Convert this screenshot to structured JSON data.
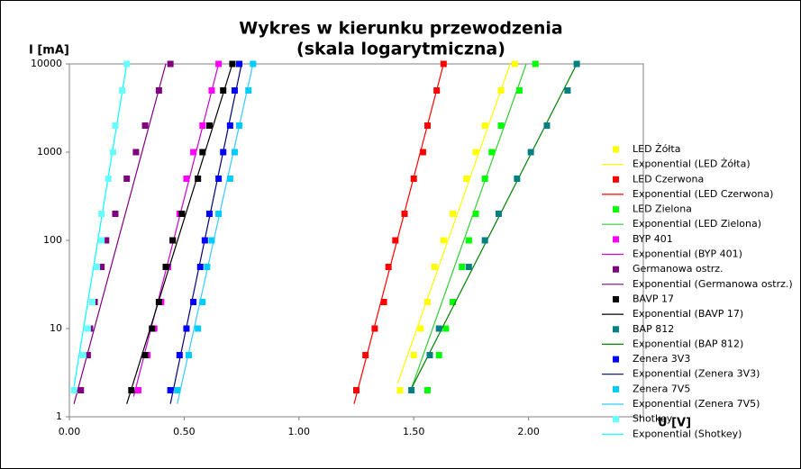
{
  "chart_data": {
    "type": "scatter",
    "title": [
      "Wykres w kierunku przewodzenia",
      "(skala logarytmiczna)"
    ],
    "y_label": "I [mA]",
    "x_label": "U [V]",
    "y_log": true,
    "grid": false,
    "legend": "right",
    "xlim": [
      0,
      2.5
    ],
    "ylim": [
      1,
      10000
    ],
    "xticks": [
      {
        "value": 0,
        "label": "0.00"
      },
      {
        "value": 0.5,
        "label": "0.50"
      },
      {
        "value": 1,
        "label": "1.00"
      },
      {
        "value": 1.5,
        "label": "1.50"
      },
      {
        "value": 2,
        "label": "2.00"
      }
    ],
    "yticks": [
      1,
      10,
      100,
      1000,
      10000
    ],
    "series": [
      {
        "name": "LED Żółta",
        "color": "#ffff00",
        "x": [
          1.44,
          1.5,
          1.53,
          1.56,
          1.59,
          1.63,
          1.67,
          1.73,
          1.77,
          1.81,
          1.88,
          1.94
        ],
        "values": [
          2,
          5,
          10,
          20,
          50,
          100,
          200,
          500,
          1000,
          2000,
          5000,
          10000
        ],
        "trend": {
          "name": "Exponential (LED Żółta)",
          "color": "#ffff00",
          "x": [
            1.43,
            1.92
          ],
          "values": [
            2.4,
            10000
          ]
        }
      },
      {
        "name": "LED Czerwona",
        "color": "#ff0000",
        "x": [
          1.25,
          1.29,
          1.33,
          1.37,
          1.39,
          1.42,
          1.46,
          1.5,
          1.54,
          1.56,
          1.6,
          1.63
        ],
        "values": [
          2,
          5,
          10,
          20,
          50,
          100,
          200,
          500,
          1000,
          2000,
          5000,
          10000
        ],
        "trend": {
          "name": "Exponential (LED Czerwona)",
          "color": "#ff0000",
          "x": [
            1.24,
            1.63
          ],
          "values": [
            1.4,
            10000
          ]
        }
      },
      {
        "name": "LED Zielona",
        "color": "#00ff00",
        "x": [
          1.56,
          1.61,
          1.64,
          1.67,
          1.71,
          1.74,
          1.77,
          1.81,
          1.84,
          1.88,
          1.96,
          2.03
        ],
        "values": [
          2,
          5,
          10,
          20,
          50,
          100,
          200,
          500,
          1000,
          2000,
          5000,
          10000
        ],
        "trend": {
          "name": "Exponential (LED Zielona)",
          "color": "#33cc33",
          "x": [
            1.49,
            1.99
          ],
          "values": [
            2.1,
            10000
          ]
        }
      },
      {
        "name": "BYP 401",
        "color": "#ff00ff",
        "x": [
          0.3,
          0.34,
          0.37,
          0.4,
          0.43,
          0.45,
          0.48,
          0.51,
          0.54,
          0.58,
          0.62,
          0.65
        ],
        "values": [
          2,
          5,
          10,
          20,
          50,
          100,
          200,
          500,
          1000,
          2000,
          5000,
          10000
        ],
        "trend": {
          "name": "Exponential (BYP 401)",
          "color": "#cc00cc",
          "x": [
            0.28,
            0.65
          ],
          "values": [
            1.7,
            10000
          ]
        }
      },
      {
        "name": "Germanowa ostrz.",
        "color": "#800080",
        "x": [
          0.05,
          0.08,
          0.09,
          0.11,
          0.14,
          0.16,
          0.2,
          0.25,
          0.29,
          0.33,
          0.39,
          0.44
        ],
        "values": [
          2,
          5,
          10,
          20,
          50,
          100,
          200,
          500,
          1000,
          2000,
          5000,
          10000
        ],
        "trend": {
          "name": "Exponential (Germanowa ostrz.)",
          "color": "#800080",
          "x": [
            0.02,
            0.42
          ],
          "values": [
            1.4,
            10000
          ]
        }
      },
      {
        "name": "BAVP 17",
        "color": "#000000",
        "x": [
          0.27,
          0.33,
          0.36,
          0.39,
          0.42,
          0.45,
          0.49,
          0.56,
          0.58,
          0.61,
          0.67,
          0.71
        ],
        "values": [
          2,
          5,
          10,
          20,
          50,
          100,
          200,
          500,
          1000,
          2000,
          5000,
          10000
        ],
        "trend": {
          "name": "Exponential (BAVP 17)",
          "color": "#000000",
          "x": [
            0.25,
            0.71
          ],
          "values": [
            1.4,
            10000
          ]
        }
      },
      {
        "name": "BAP 812",
        "color": "#008080",
        "x": [
          1.49,
          1.57,
          1.61,
          1.74,
          1.81,
          1.87,
          1.95,
          2.01,
          2.08,
          2.17,
          2.21
        ],
        "values": [
          2,
          5,
          10,
          50,
          100,
          200,
          500,
          1000,
          2000,
          5000,
          10000
        ],
        "trend": {
          "name": "Exponential (BAP 812)",
          "color": "#008000",
          "x": [
            1.49,
            2.21
          ],
          "values": [
            2.1,
            10000
          ]
        }
      },
      {
        "name": "Zenera 3V3",
        "color": "#0000ff",
        "x": [
          0.44,
          0.48,
          0.51,
          0.54,
          0.57,
          0.59,
          0.61,
          0.65,
          0.67,
          0.7,
          0.72,
          0.74
        ],
        "values": [
          2,
          5,
          10,
          20,
          50,
          100,
          200,
          500,
          1000,
          2000,
          5000,
          10000
        ],
        "trend": {
          "name": "Exponential (Zenera 3V3)",
          "color": "#000080",
          "x": [
            0.44,
            0.75
          ],
          "values": [
            1.4,
            10000
          ]
        }
      },
      {
        "name": "Zenera 7V5",
        "color": "#00ccff",
        "x": [
          0.47,
          0.52,
          0.56,
          0.58,
          0.6,
          0.62,
          0.65,
          0.7,
          0.72,
          0.74,
          0.78,
          0.8
        ],
        "values": [
          2,
          5,
          10,
          20,
          50,
          100,
          200,
          500,
          1000,
          2000,
          5000,
          10000
        ],
        "trend": {
          "name": "Exponential (Zenera 7V5)",
          "color": "#33ccff",
          "x": [
            0.47,
            0.8
          ],
          "values": [
            1.4,
            10000
          ]
        }
      },
      {
        "name": "Shotkey",
        "color": "#66ffff",
        "x": [
          0.02,
          0.06,
          0.08,
          0.1,
          0.12,
          0.14,
          0.14,
          0.17,
          0.19,
          0.2,
          0.23,
          0.25
        ],
        "values": [
          2,
          5,
          10,
          20,
          50,
          100,
          200,
          500,
          1000,
          2000,
          5000,
          10000
        ],
        "trend": {
          "name": "Exponential (Shotkey)",
          "color": "#00ffff",
          "x": [
            0.02,
            0.25
          ],
          "values": [
            2.2,
            10000
          ]
        }
      }
    ]
  }
}
